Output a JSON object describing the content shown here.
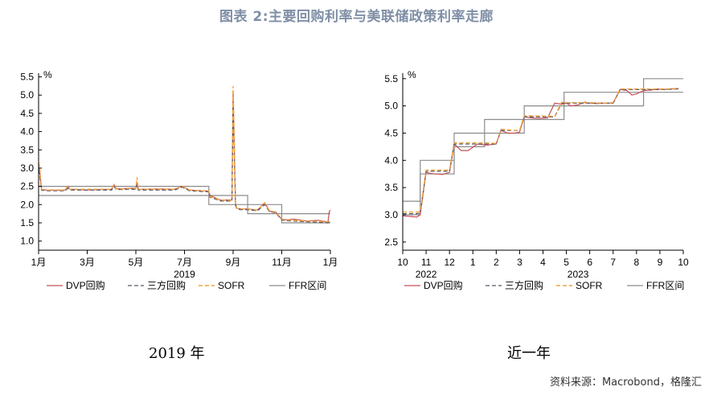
{
  "title": "图表 2:主要回购利率与美联储政策利率走廊",
  "source": "资料来源：Macrobond，格隆汇",
  "legend": [
    "DVP回购",
    "三方回购",
    "SOFR",
    "FFR区间"
  ],
  "colors": {
    "dvp": "#c8505a",
    "tri": "#555a66",
    "sofr": "#f2a33a",
    "ffr": "#8c8c8c",
    "title": "#7f8fa6"
  },
  "chart_data": [
    {
      "type": "line",
      "caption": "2019 年",
      "unit": "%",
      "ylim": [
        0.75,
        5.6
      ],
      "yticks": [
        1.0,
        1.5,
        2.0,
        2.5,
        3.0,
        3.5,
        4.0,
        4.5,
        5.0,
        5.5
      ],
      "ytick_labels": [
        "1.0",
        "1.5",
        "2.0",
        "2.5",
        "3.0",
        "3.5",
        "4.0",
        "4.5",
        "5.0",
        "5.5"
      ],
      "xlim": [
        0,
        12
      ],
      "xticks": [
        0,
        2,
        4,
        6,
        8,
        10,
        12
      ],
      "xtick_labels": [
        "1月",
        "3月",
        "5月",
        "7月",
        "9月",
        "11月",
        "1月"
      ],
      "year_labels": [
        {
          "x": 6,
          "label": "2019"
        }
      ],
      "series": [
        {
          "name": "DVP回购",
          "key": "dvp",
          "x": [
            0,
            0.05,
            0.12,
            0.3,
            1.1,
            1.2,
            1.3,
            2.0,
            3.0,
            3.1,
            3.2,
            4.0,
            4.05,
            4.1,
            5.0,
            5.6,
            5.9,
            6.2,
            6.7,
            7.0,
            7.05,
            7.5,
            7.95,
            8.0,
            8.1,
            8.15,
            8.3,
            8.6,
            9.0,
            9.3,
            9.5,
            9.75,
            10.0,
            10.2,
            10.5,
            11.0,
            11.5,
            11.9,
            11.95,
            12.0
          ],
          "y": [
            3.05,
            2.9,
            2.42,
            2.4,
            2.4,
            2.5,
            2.42,
            2.4,
            2.42,
            2.55,
            2.43,
            2.45,
            2.6,
            2.42,
            2.43,
            2.42,
            2.5,
            2.4,
            2.38,
            2.37,
            2.25,
            2.12,
            2.13,
            5.1,
            2.0,
            1.9,
            1.88,
            1.88,
            1.85,
            2.05,
            1.82,
            1.8,
            1.6,
            1.58,
            1.6,
            1.55,
            1.57,
            1.52,
            1.8,
            1.85
          ]
        },
        {
          "name": "三方回购",
          "key": "tri",
          "x": [
            0,
            0.05,
            0.12,
            0.3,
            1.1,
            1.2,
            1.3,
            3.0,
            3.1,
            3.2,
            4.0,
            4.05,
            4.1,
            5.6,
            5.9,
            6.2,
            6.7,
            7.0,
            7.05,
            7.5,
            7.95,
            8.0,
            8.1,
            8.15,
            8.3,
            8.6,
            9.0,
            9.3,
            9.5,
            9.75,
            10.0,
            10.2,
            11.0,
            11.9,
            12.0
          ],
          "y": [
            2.95,
            2.8,
            2.4,
            2.38,
            2.38,
            2.45,
            2.4,
            2.4,
            2.5,
            2.41,
            2.42,
            2.55,
            2.4,
            2.4,
            2.48,
            2.38,
            2.36,
            2.35,
            2.2,
            2.1,
            2.1,
            4.7,
            1.98,
            1.88,
            1.86,
            1.86,
            1.83,
            2.0,
            1.8,
            1.78,
            1.58,
            1.56,
            1.53,
            1.5,
            1.55
          ]
        },
        {
          "name": "SOFR",
          "key": "sofr",
          "x": [
            0,
            0.05,
            0.12,
            0.3,
            1.1,
            1.2,
            1.3,
            3.0,
            3.1,
            3.2,
            4.0,
            4.05,
            4.1,
            5.6,
            5.9,
            6.2,
            6.7,
            7.0,
            7.05,
            7.5,
            7.95,
            8.0,
            8.1,
            8.15,
            8.3,
            8.6,
            9.0,
            9.3,
            9.5,
            9.75,
            10.0,
            10.2,
            11.0,
            11.9,
            12.0
          ],
          "y": [
            3.15,
            3.0,
            2.42,
            2.4,
            2.4,
            2.52,
            2.42,
            2.42,
            2.55,
            2.42,
            2.45,
            2.75,
            2.42,
            2.42,
            2.5,
            2.4,
            2.38,
            2.37,
            2.22,
            2.12,
            2.12,
            5.25,
            2.05,
            1.9,
            1.88,
            1.88,
            1.85,
            2.05,
            1.82,
            1.8,
            1.6,
            1.58,
            1.55,
            1.53,
            1.55
          ]
        }
      ],
      "band": {
        "name": "FFR区间",
        "key": "ffr",
        "breaks": [
          0,
          7.0,
          8.6,
          10.0,
          12.0
        ],
        "upper": [
          2.5,
          2.25,
          2.0,
          1.75
        ],
        "lower": [
          2.25,
          2.0,
          1.75,
          1.5
        ]
      }
    },
    {
      "type": "line",
      "caption": "近一年",
      "unit": "%",
      "ylim": [
        2.35,
        5.6
      ],
      "yticks": [
        2.5,
        3.0,
        3.5,
        4.0,
        4.5,
        5.0,
        5.5
      ],
      "ytick_labels": [
        "2.5",
        "3.0",
        "3.5",
        "4.0",
        "4.5",
        "5.0",
        "5.5"
      ],
      "xlim": [
        0,
        12
      ],
      "xticks": [
        0,
        1,
        2,
        3,
        4,
        5,
        6,
        7,
        8,
        9,
        10,
        11,
        12
      ],
      "xtick_labels": [
        "10",
        "11",
        "12",
        "1",
        "2",
        "3",
        "4",
        "5",
        "6",
        "7",
        "8",
        "9",
        "10"
      ],
      "year_labels": [
        {
          "x": 1.0,
          "label": "2022"
        },
        {
          "x": 7.5,
          "label": "2023"
        }
      ],
      "series": [
        {
          "name": "DVP回购",
          "key": "dvp",
          "x": [
            0,
            0.3,
            0.6,
            0.75,
            1.0,
            1.2,
            1.4,
            1.7,
            2.0,
            2.2,
            2.5,
            2.8,
            3.2,
            3.6,
            4.0,
            4.2,
            4.5,
            4.8,
            5.0,
            5.2,
            5.5,
            5.8,
            6.2,
            6.5,
            6.8,
            7.0,
            7.2,
            7.5,
            7.8,
            8.0,
            8.3,
            8.6,
            9.0,
            9.3,
            9.6,
            9.8,
            10.0,
            10.3,
            10.6,
            10.9,
            11.2,
            11.5,
            11.8
          ],
          "y": [
            2.98,
            2.97,
            2.96,
            3.0,
            3.78,
            3.76,
            3.75,
            3.74,
            3.78,
            4.3,
            4.18,
            4.18,
            4.3,
            4.28,
            4.3,
            4.55,
            4.5,
            4.5,
            4.52,
            4.8,
            4.78,
            4.77,
            4.78,
            5.05,
            5.03,
            5.05,
            5.0,
            5.02,
            5.07,
            5.05,
            5.04,
            5.05,
            5.05,
            5.3,
            5.28,
            5.2,
            5.22,
            5.28,
            5.29,
            5.31,
            5.3,
            5.31,
            5.32
          ]
        },
        {
          "name": "三方回购",
          "key": "tri",
          "x": [
            0,
            0.6,
            0.75,
            1.0,
            1.7,
            2.0,
            2.2,
            3.6,
            4.0,
            4.2,
            4.8,
            5.0,
            5.2,
            6.5,
            6.8,
            7.0,
            7.5,
            8.0,
            8.6,
            9.0,
            9.3,
            10.0,
            11.0,
            11.8
          ],
          "y": [
            3.02,
            3.02,
            3.03,
            3.8,
            3.8,
            3.8,
            4.3,
            4.3,
            4.3,
            4.55,
            4.55,
            4.55,
            4.8,
            4.8,
            5.05,
            5.05,
            5.05,
            5.05,
            5.05,
            5.05,
            5.3,
            5.3,
            5.3,
            5.31
          ]
        },
        {
          "name": "SOFR",
          "key": "sofr",
          "x": [
            0,
            0.6,
            0.75,
            1.0,
            1.7,
            2.0,
            2.2,
            3.6,
            4.0,
            4.2,
            4.8,
            5.0,
            5.2,
            6.5,
            6.8,
            7.0,
            7.5,
            8.0,
            8.6,
            9.0,
            9.3,
            10.0,
            11.0,
            11.8
          ],
          "y": [
            3.05,
            3.05,
            3.06,
            3.82,
            3.82,
            3.82,
            4.32,
            4.32,
            4.31,
            4.57,
            4.55,
            4.55,
            4.82,
            4.81,
            5.07,
            5.06,
            5.06,
            5.06,
            5.05,
            5.06,
            5.31,
            5.31,
            5.31,
            5.32
          ]
        }
      ],
      "band": {
        "name": "FFR区间",
        "key": "ffr",
        "breaks": [
          0,
          0.75,
          2.2,
          3.5,
          5.2,
          6.9,
          10.3,
          12.0
        ],
        "upper": [
          3.25,
          4.0,
          4.5,
          4.75,
          5.0,
          5.25,
          5.5
        ],
        "lower": [
          3.0,
          3.75,
          4.25,
          4.5,
          4.75,
          5.0,
          5.25
        ]
      }
    }
  ]
}
